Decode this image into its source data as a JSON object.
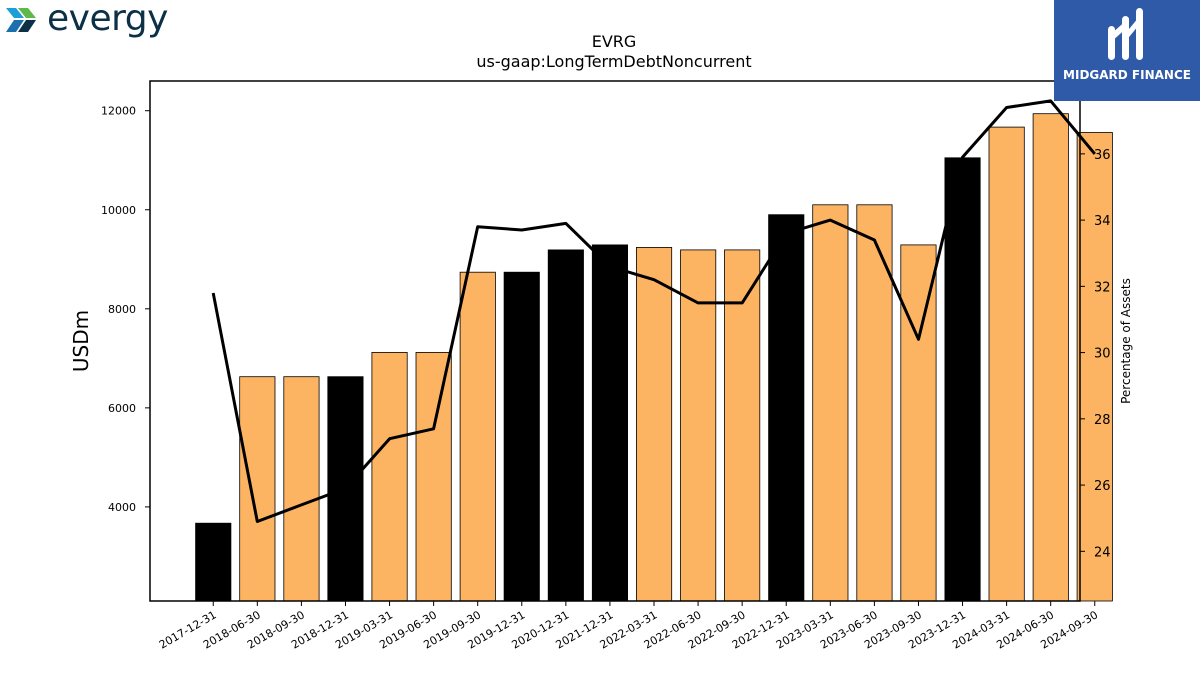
{
  "branding": {
    "company_logo_text": "evergy",
    "publisher_logo_text": "MIDGARD FINANCE"
  },
  "colors": {
    "bar_orange": "#fdb462",
    "bar_black": "#000000",
    "line": "#000000",
    "publisher_bg": "#2f5aa8",
    "company_text": "#0c3046"
  },
  "chart_data": {
    "type": "bar",
    "title": "EVRG",
    "subtitle": "us-gaap:LongTermDebtNoncurrent",
    "ylabel": "USDm",
    "y2label": "Percentage of Assets",
    "ylim": [
      2100,
      12600
    ],
    "y2lim": [
      22.5,
      38.2
    ],
    "yticks": [
      4000,
      6000,
      8000,
      10000,
      12000
    ],
    "y2ticks": [
      24,
      26,
      28,
      30,
      32,
      34,
      36
    ],
    "categories": [
      "2017-12-31",
      "2018-06-30",
      "2018-09-30",
      "2018-12-31",
      "2019-03-31",
      "2019-06-30",
      "2019-09-30",
      "2019-12-31",
      "2020-12-31",
      "2021-12-31",
      "2022-03-31",
      "2022-06-30",
      "2022-09-30",
      "2022-12-31",
      "2023-03-31",
      "2023-06-30",
      "2023-09-30",
      "2023-12-31",
      "2024-03-31",
      "2024-06-30",
      "2024-09-30"
    ],
    "values": [
      3670,
      6630,
      6630,
      6630,
      7120,
      7120,
      8740,
      8740,
      9190,
      9290,
      9240,
      9190,
      9190,
      9900,
      10100,
      10100,
      9290,
      11050,
      11670,
      11940,
      11560
    ],
    "annual": [
      true,
      false,
      false,
      true,
      false,
      false,
      false,
      true,
      true,
      true,
      false,
      false,
      false,
      true,
      false,
      false,
      false,
      true,
      false,
      false,
      false
    ],
    "pct_assets": [
      31.8,
      24.9,
      25.4,
      25.9,
      27.4,
      27.7,
      33.8,
      33.7,
      33.9,
      32.6,
      32.2,
      31.5,
      31.5,
      33.6,
      34.0,
      33.4,
      30.4,
      35.9,
      37.4,
      37.6,
      36.0
    ],
    "grid": false
  }
}
